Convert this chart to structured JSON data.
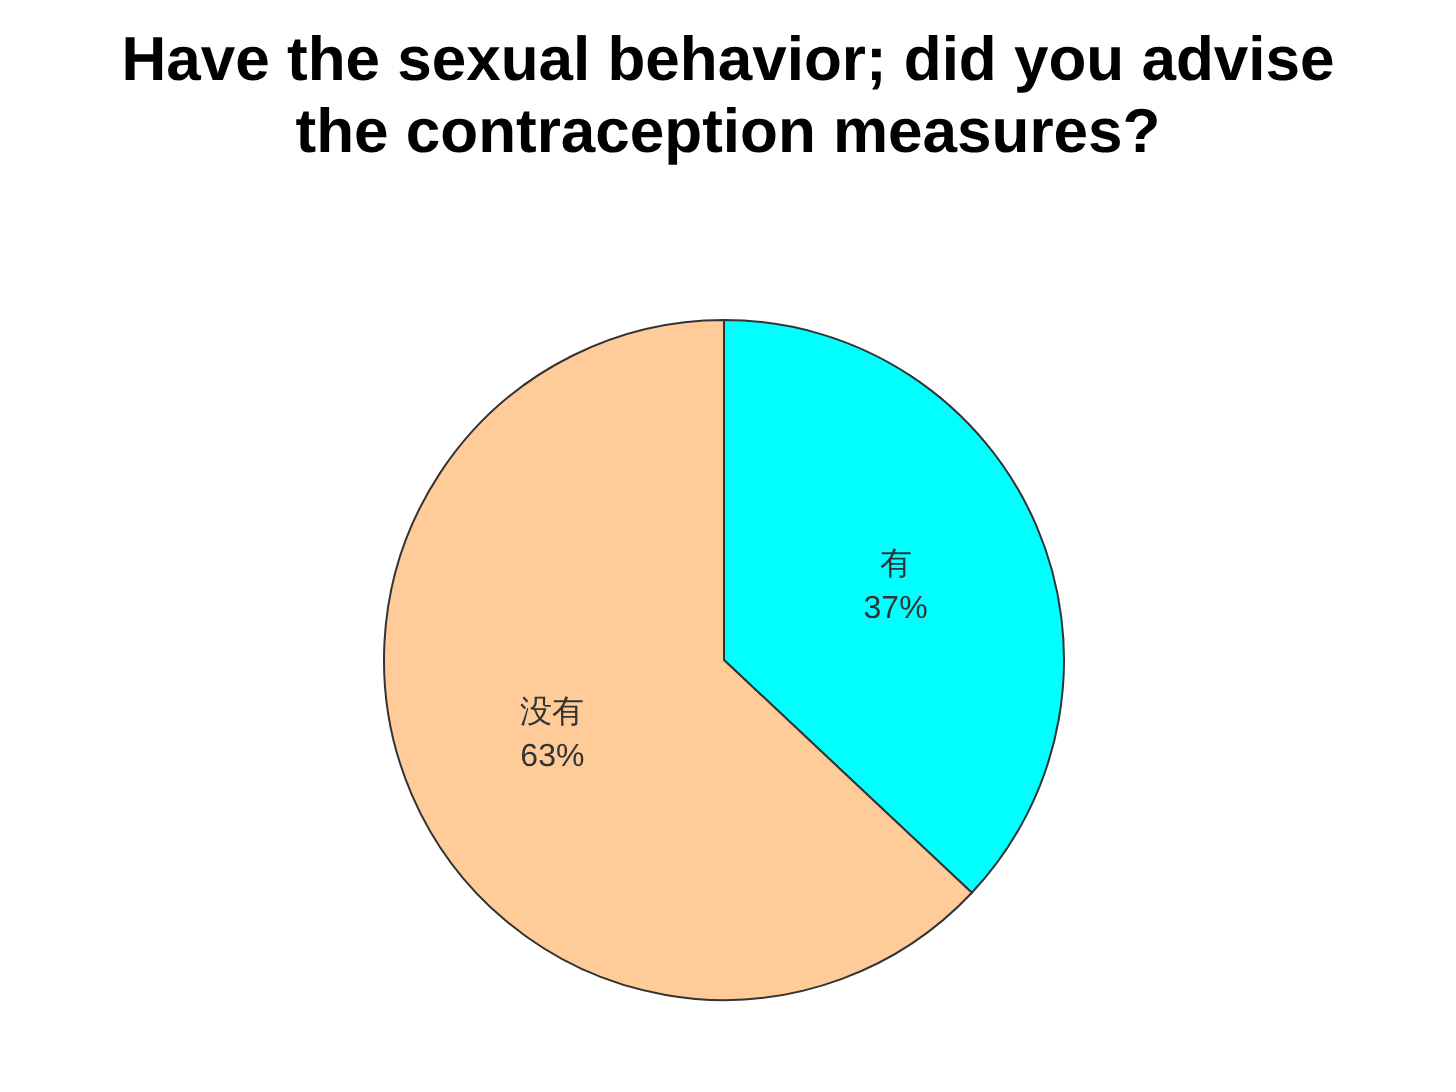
{
  "chart_data": {
    "type": "pie",
    "title": "Have the sexual behavior; did you advise the contraception measures?",
    "categories": [
      "有",
      "没有"
    ],
    "values": [
      37,
      63
    ],
    "value_labels": [
      "37%",
      "63%"
    ],
    "colors": [
      "#00ffff",
      "#ffcc99"
    ],
    "legend": false
  }
}
